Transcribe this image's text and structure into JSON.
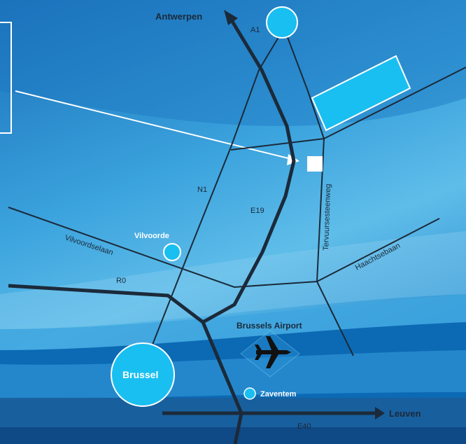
{
  "labels": {
    "antwerpen": "Antwerpen",
    "a1": "A1",
    "n1": "N1",
    "e19": "E19",
    "tervuursesteenweg": "Tervuursesteenweg",
    "vilvoordselaan": "Vilvoordselaan",
    "vilvoorde": "Vilvoorde",
    "haachtsebaan": "Haachtsebaan",
    "r0": "R0",
    "brussels_airport": "Brussels Airport",
    "brussel": "Brussel",
    "zaventem": "Zaventem",
    "leuven": "Leuven",
    "e40": "E40"
  },
  "colors": {
    "background": "#1f7fc4",
    "marker": "#19bff0",
    "road": "#1b2a3a",
    "callout": "#ffffff"
  },
  "icons": {
    "airport": "airplane-icon",
    "location": "white-square-location"
  }
}
